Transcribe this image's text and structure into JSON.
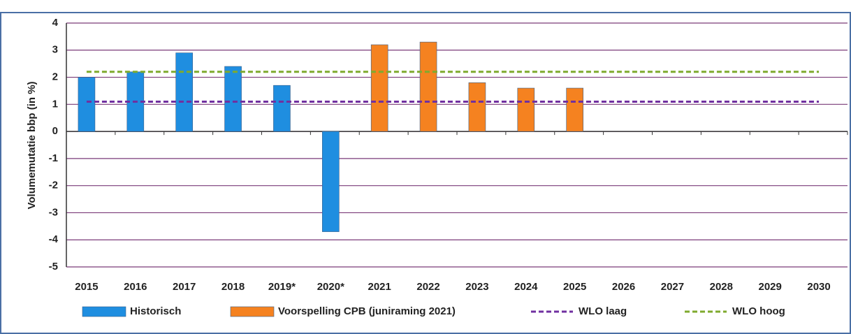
{
  "chart_data": {
    "type": "bar",
    "y_label": "Volumemutatie bbp (in %)",
    "categories": [
      "2015",
      "2016",
      "2017",
      "2018",
      "2019*",
      "2020*",
      "2021",
      "2022",
      "2023",
      "2024",
      "2025",
      "2026",
      "2027",
      "2028",
      "2029",
      "2030"
    ],
    "series": [
      {
        "name": "Historisch",
        "color": "#1f8ee0",
        "values": [
          2.0,
          2.2,
          2.9,
          2.4,
          1.7,
          -3.7,
          null,
          null,
          null,
          null,
          null,
          null,
          null,
          null,
          null,
          null
        ]
      },
      {
        "name": "Voorspelling CPB (juniraming 2021)",
        "color": "#f58220",
        "values": [
          null,
          null,
          null,
          null,
          null,
          null,
          3.2,
          3.3,
          1.8,
          1.6,
          1.6,
          null,
          null,
          null,
          null,
          null
        ]
      },
      {
        "name": "WLO laag",
        "color": "#7030a0",
        "type": "line",
        "dashed": true,
        "values": [
          1.1,
          1.1,
          1.1,
          1.1,
          1.1,
          1.1,
          1.1,
          1.1,
          1.1,
          1.1,
          1.1,
          1.1,
          1.1,
          1.1,
          1.1,
          1.1
        ]
      },
      {
        "name": "WLO hoog",
        "color": "#7faa2e",
        "type": "line",
        "dashed": true,
        "values": [
          2.2,
          2.2,
          2.2,
          2.2,
          2.2,
          2.2,
          2.2,
          2.2,
          2.2,
          2.2,
          2.2,
          2.2,
          2.2,
          2.2,
          2.2,
          2.2
        ]
      }
    ],
    "ylim": [
      -5,
      4
    ],
    "yticks": [
      -5,
      -4,
      -3,
      -2,
      -1,
      0,
      1,
      2,
      3,
      4
    ],
    "grid": true,
    "legend": "bottom"
  }
}
